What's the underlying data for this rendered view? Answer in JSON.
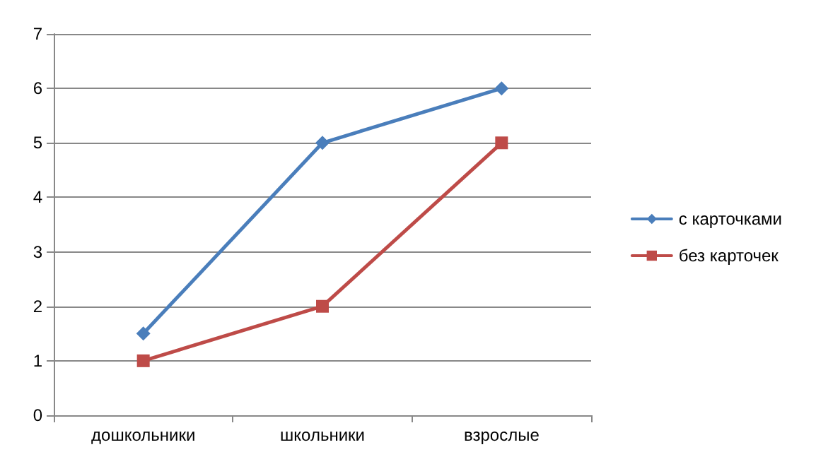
{
  "chart_data": {
    "type": "line",
    "categories": [
      "дошкольники",
      "школьники",
      "взрослые"
    ],
    "series": [
      {
        "name": "с карточками",
        "color": "#4a7ebb",
        "values": [
          1.5,
          5,
          6
        ],
        "marker": "diamond"
      },
      {
        "name": "без карточек",
        "color": "#be4b48",
        "values": [
          1,
          2,
          5
        ],
        "marker": "square"
      }
    ],
    "ylim": [
      0,
      7
    ],
    "yticks": [
      0,
      1,
      2,
      3,
      4,
      5,
      6,
      7
    ],
    "grid": "y",
    "legend": "right",
    "line_style": "solid"
  }
}
